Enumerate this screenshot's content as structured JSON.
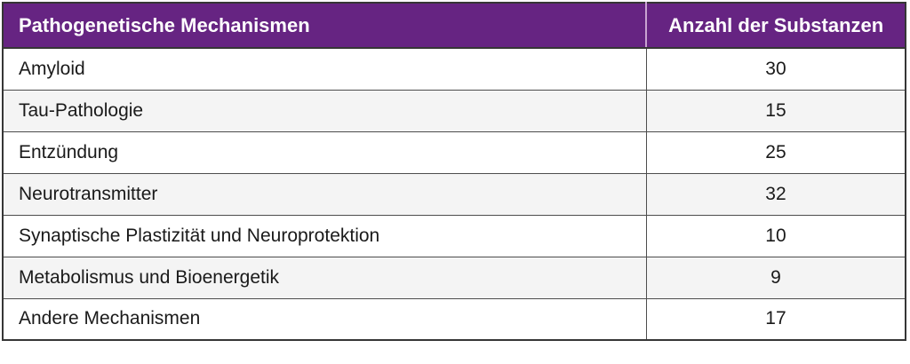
{
  "table": {
    "columns": [
      {
        "label": "Pathogenetische Mechanismen"
      },
      {
        "label": "Anzahl der Substanzen"
      }
    ],
    "rows": [
      {
        "mechanism": "Amyloid",
        "count": "30"
      },
      {
        "mechanism": "Tau-Pathologie",
        "count": "15"
      },
      {
        "mechanism": "Entzündung",
        "count": "25"
      },
      {
        "mechanism": "Neurotransmitter",
        "count": "32"
      },
      {
        "mechanism": "Synaptische Plastizität und Neuroprotektion",
        "count": "10"
      },
      {
        "mechanism": "Metabolismus und Bioenergetik",
        "count": "9"
      },
      {
        "mechanism": "Andere Mechanismen",
        "count": "17"
      }
    ]
  },
  "theme": {
    "header_bg": "#662482",
    "header_text": "#ffffff",
    "header_divider": "#c9a3d1",
    "border": "#363636",
    "inner_border": "#4d4d4d",
    "row_bg": "#ffffff",
    "row_alt_bg": "#f4f4f4",
    "text": "#1a1a1a"
  }
}
